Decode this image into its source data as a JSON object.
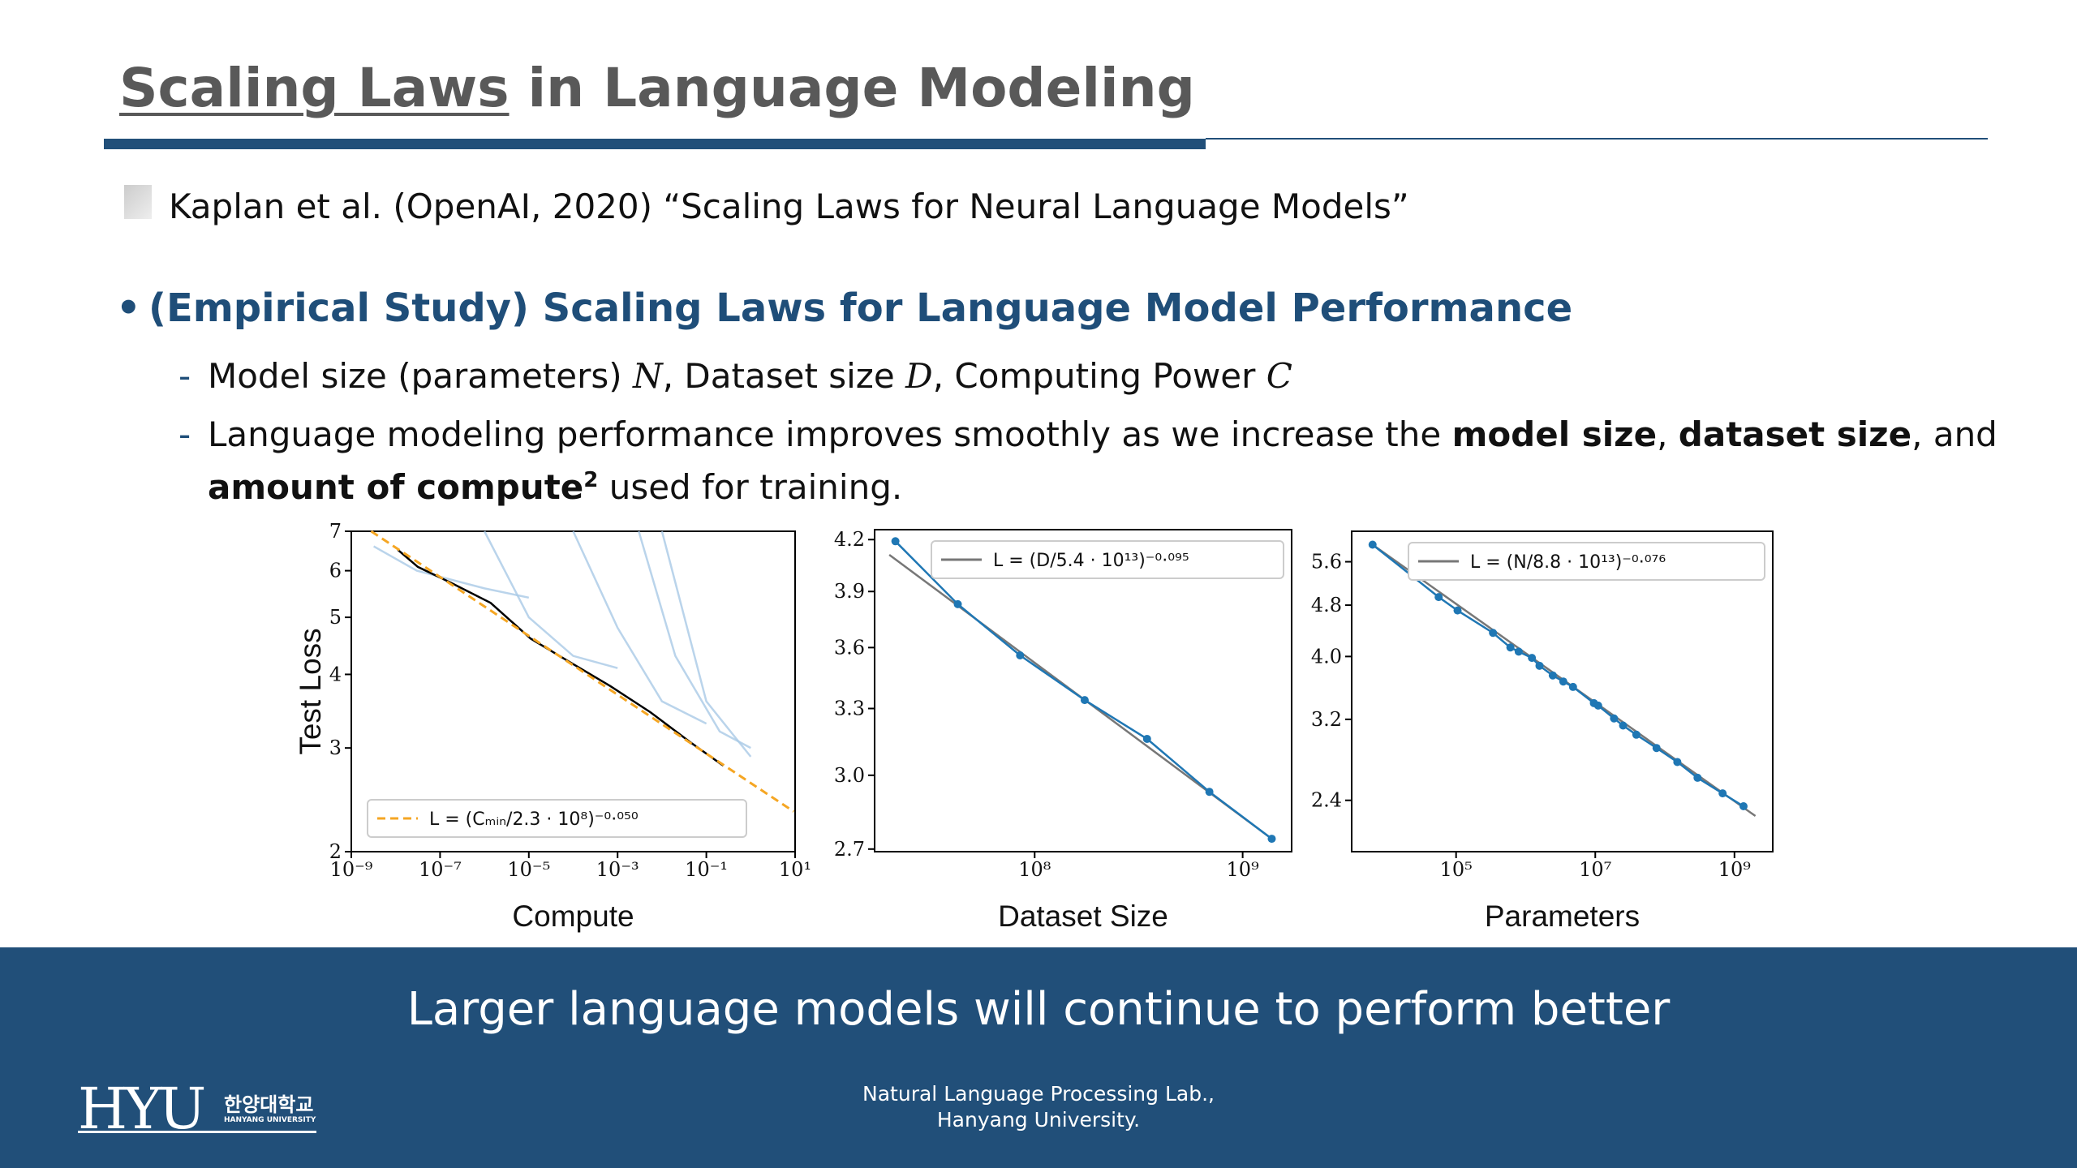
{
  "header": {
    "title_underlined": "Scaling Laws",
    "title_rest": " in Language Modeling"
  },
  "reference": "Kaplan et al. (OpenAI, 2020) “Scaling Laws for Neural Language Models”",
  "bullet": {
    "heading": "(Empirical Study) Scaling Laws for Language Model Performance",
    "items": [
      [
        "Model size (parameters) ",
        "N",
        ", Dataset size ",
        "D",
        ", Computing Power ",
        "C"
      ],
      [
        "Language modeling performance improves smoothly as we increase the ",
        "model size",
        ", ",
        "dataset size",
        ", and",
        "amount of compute",
        "2",
        " used for training."
      ]
    ]
  },
  "chart_data": [
    {
      "type": "line",
      "x_label": "Compute",
      "y_label": "Test Loss",
      "xlog": true,
      "ylog": true,
      "xlim": [
        1e-09,
        10
      ],
      "ylim": [
        2,
        7
      ],
      "xticks": [
        {
          "value": 1e-09,
          "label": "10⁻⁹"
        },
        {
          "value": 1e-07,
          "label": "10⁻⁷"
        },
        {
          "value": 1e-05,
          "label": "10⁻⁵"
        },
        {
          "value": 0.001,
          "label": "10⁻³"
        },
        {
          "value": 0.1,
          "label": "10⁻¹"
        },
        {
          "value": 10,
          "label": "10¹"
        }
      ],
      "yticks": [
        2,
        3,
        4,
        5,
        6,
        7
      ],
      "legend": "lower left",
      "series": [
        {
          "color": "#a9c9e6",
          "x": [
            3.2e-09,
            3e-08,
            1e-06,
            1e-05
          ],
          "values": [
            6.6,
            6.0,
            5.6,
            5.4
          ]
        },
        {
          "color": "#a9c9e6",
          "x": [
            1e-06,
            1e-05,
            0.0001,
            0.001
          ],
          "values": [
            7,
            5.0,
            4.3,
            4.1
          ]
        },
        {
          "color": "#a9c9e6",
          "x": [
            0.0001,
            0.001,
            0.01,
            0.1
          ],
          "values": [
            7,
            4.8,
            3.6,
            3.3
          ]
        },
        {
          "color": "#a9c9e6",
          "x": [
            0.003,
            0.02,
            0.2,
            1
          ],
          "values": [
            7,
            4.3,
            3.2,
            3.0
          ]
        },
        {
          "color": "#a9c9e6",
          "x": [
            0.01,
            0.1,
            1
          ],
          "values": [
            7,
            3.6,
            2.9
          ]
        },
        {
          "color": "#000000",
          "x": [
            1.12e-08,
            3.16e-08,
            1.78e-07,
            1.38e-06,
            1.1e-05,
            8.7e-05,
            0.00069,
            0.0055,
            0.043,
            0.24
          ],
          "values": [
            6.51,
            6.09,
            5.72,
            5.29,
            4.6,
            4.19,
            3.82,
            3.45,
            3.07,
            2.8
          ]
        },
        {
          "name": "L = (Cₘᵢₙ/2.3 · 10⁸)⁻⁰·⁰⁵⁰",
          "color": "#f5a623",
          "dashed": true,
          "x": [
            2.8e-09,
            9.3
          ],
          "values": [
            7.0,
            2.34
          ]
        }
      ]
    },
    {
      "type": "line",
      "x_label": "Dataset Size",
      "xlog": true,
      "ylog": true,
      "xlim": [
        17000000,
        1720000000
      ],
      "ylim": [
        2.69,
        4.26
      ],
      "xticks": [
        {
          "value": 100000000,
          "label": "10⁸"
        },
        {
          "value": 1000000000,
          "label": "10⁹"
        }
      ],
      "yticks": [
        2.7,
        {
          "value": 3,
          "label": "3.0"
        },
        3.3,
        3.6,
        3.9,
        4.2
      ],
      "legend": "upper right",
      "series": [
        {
          "name": "L = (D/5.4 · 10¹³)⁻⁰·⁰⁹⁵",
          "color": "#777777",
          "x": [
            20000000,
            1380000000
          ],
          "values": [
            4.11,
            2.74
          ]
        },
        {
          "color": "#1f77b4",
          "markers": true,
          "x": [
            21400000,
            42700000,
            85100000,
            174000000,
            347000000,
            692000000,
            1380000000
          ],
          "values": [
            4.19,
            3.83,
            3.56,
            3.34,
            3.16,
            2.93,
            2.74
          ]
        }
      ]
    },
    {
      "type": "line",
      "x_label": "Parameters",
      "xlog": true,
      "ylog": true,
      "xlim": [
        3160,
        3550000000
      ],
      "ylim": [
        2.0,
        6.24
      ],
      "xticks": [
        {
          "value": 100000,
          "label": "10⁵"
        },
        {
          "value": 10000000,
          "label": "10⁷"
        },
        {
          "value": 1000000000,
          "label": "10⁹"
        }
      ],
      "yticks": [
        2.4,
        3.2,
        {
          "value": 4,
          "label": "4.0"
        },
        4.8,
        5.6
      ],
      "legend": "upper right",
      "series": [
        {
          "name": "L = (N/8.8 · 10¹³)⁻⁰·⁰⁷⁶",
          "color": "#777777",
          "x": [
            6310,
            2000000000
          ],
          "values": [
            5.95,
            2.27
          ]
        },
        {
          "color": "#1f77b4",
          "markers": true,
          "x": [
            6310,
            56200,
            105000,
            339000,
            603000,
            794000,
            1230000,
            1580000,
            2450000,
            3470000,
            4790000,
            9550000,
            11000000,
            18600000,
            25100000,
            38900000,
            75900000,
            151000000,
            295000000,
            676000000,
            1350000000
          ],
          "values": [
            5.95,
            4.94,
            4.71,
            4.35,
            4.13,
            4.07,
            3.98,
            3.87,
            3.74,
            3.66,
            3.59,
            3.39,
            3.36,
            3.21,
            3.13,
            3.03,
            2.89,
            2.75,
            2.6,
            2.46,
            2.35
          ]
        }
      ]
    }
  ],
  "footer": {
    "message": "Larger language models will continue to perform better",
    "lab": [
      "Natural Language Processing Lab.,",
      "Hanyang University."
    ],
    "logo": {
      "mark": "HYU",
      "korean": "한양대학교",
      "english": "HANYANG UNIVERSITY"
    }
  }
}
